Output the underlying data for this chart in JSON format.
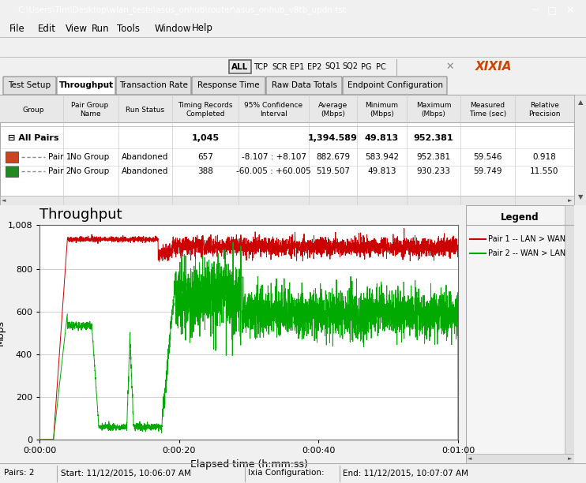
{
  "title_bar": "C:\\Users\\Tim\\Desktop\\wlan_tests\\asus_onhub\\router\\asus_onhub_v8tb_updn.tst",
  "menu_items": [
    "File",
    "Edit",
    "View",
    "Run",
    "Tools",
    "Window",
    "Help"
  ],
  "tabs": [
    "Test Setup",
    "Throughput",
    "Transaction Rate",
    "Response Time",
    "Raw Data Totals",
    "Endpoint Configuration"
  ],
  "active_tab": "Throughput",
  "chart_title": "Throughput",
  "ylabel": "Mbps",
  "xlabel": "Elapsed time (h:mm:ss)",
  "ylim": [
    0,
    1008
  ],
  "ytick_vals": [
    0,
    200,
    400,
    600,
    800,
    1008
  ],
  "ytick_labels": [
    "0",
    "200",
    "400",
    "600",
    "800",
    "1,008"
  ],
  "xtick_labels": [
    "0:00:00",
    "0:00:20",
    "0:00:40",
    "0:01:00"
  ],
  "xtick_vals": [
    0,
    20,
    40,
    60
  ],
  "xlim": [
    0,
    60
  ],
  "legend_entries": [
    "Pair 1 -- LAN > WAN",
    "Pair 2 -- WAN > LAN"
  ],
  "legend_colors": [
    "#cc0000",
    "#00cc00"
  ],
  "bg_color": "#f0f0f0",
  "chart_bg": "#ffffff",
  "grid_color": "#d0d0d0",
  "pair1_color": "#cc0000",
  "pair2_color": "#00aa00",
  "title_bar_color": "#6699cc",
  "fig_width": 7.42,
  "fig_height": 6.12,
  "dpi": 100,
  "toolbar_items": [
    "TCP",
    "SCR",
    "EP1",
    "EP2",
    "SQ1",
    "SQ2",
    "PG",
    "PC"
  ]
}
